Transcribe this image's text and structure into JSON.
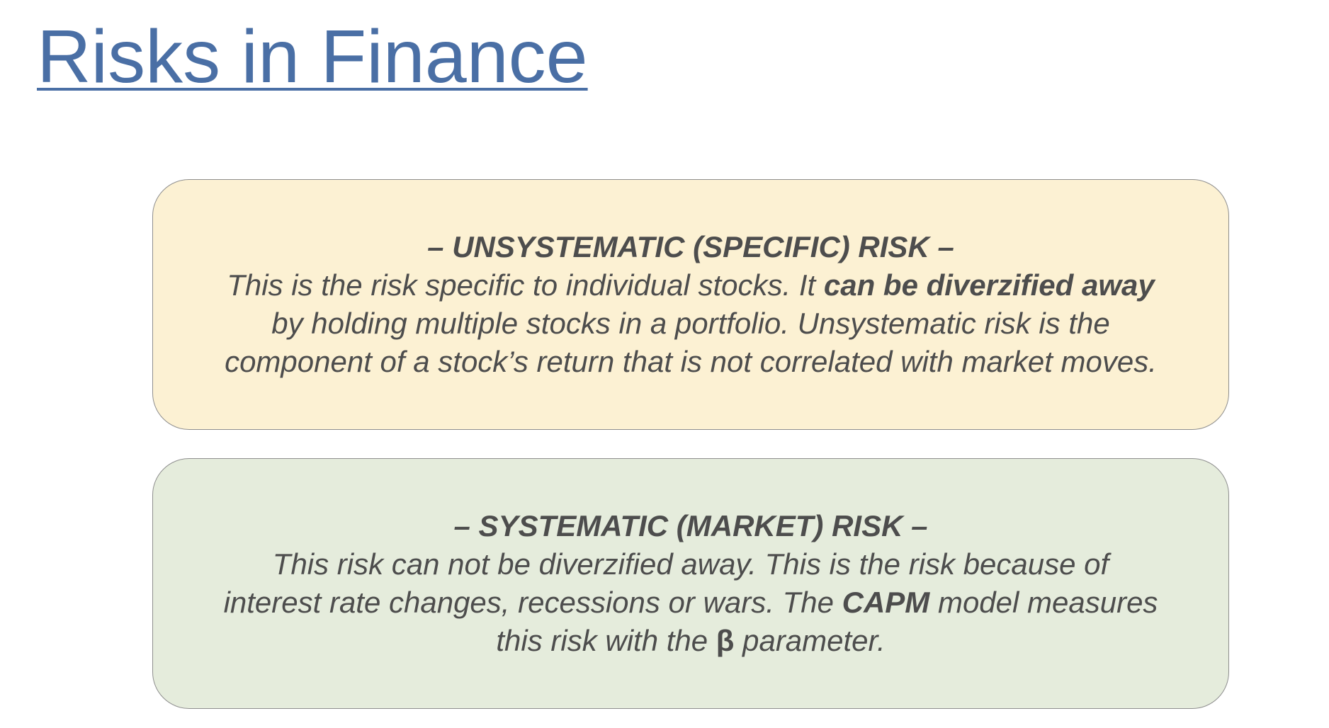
{
  "slide": {
    "title": "Risks in Finance"
  },
  "unsystematic": {
    "heading": "– UNSYSTEMATIC (SPECIFIC) RISK –",
    "line1_pre": "This is the risk specific to individual stocks. It ",
    "line1_emph": "can be diverzified away",
    "line2": "by holding multiple stocks in a portfolio. Unsystematic risk is the",
    "line3": "component of a stock’s return that is not correlated with market moves.",
    "background_color": "#fcf1d3"
  },
  "systematic": {
    "heading": "– SYSTEMATIC (MARKET) RISK –",
    "line1": "This risk can not be diverzified away. This is the risk because of",
    "line2_pre": "interest rate changes, recessions or wars. The ",
    "line2_emph": "CAPM",
    "line2_post": " model measures",
    "line3_pre": "this risk with the ",
    "line3_beta": "β",
    "line3_post": " parameter.",
    "background_color": "#e5ecdc"
  },
  "colors": {
    "title": "#4a6fa5",
    "body_text": "#4d4d4d",
    "box_border": "#8e8e8e"
  }
}
